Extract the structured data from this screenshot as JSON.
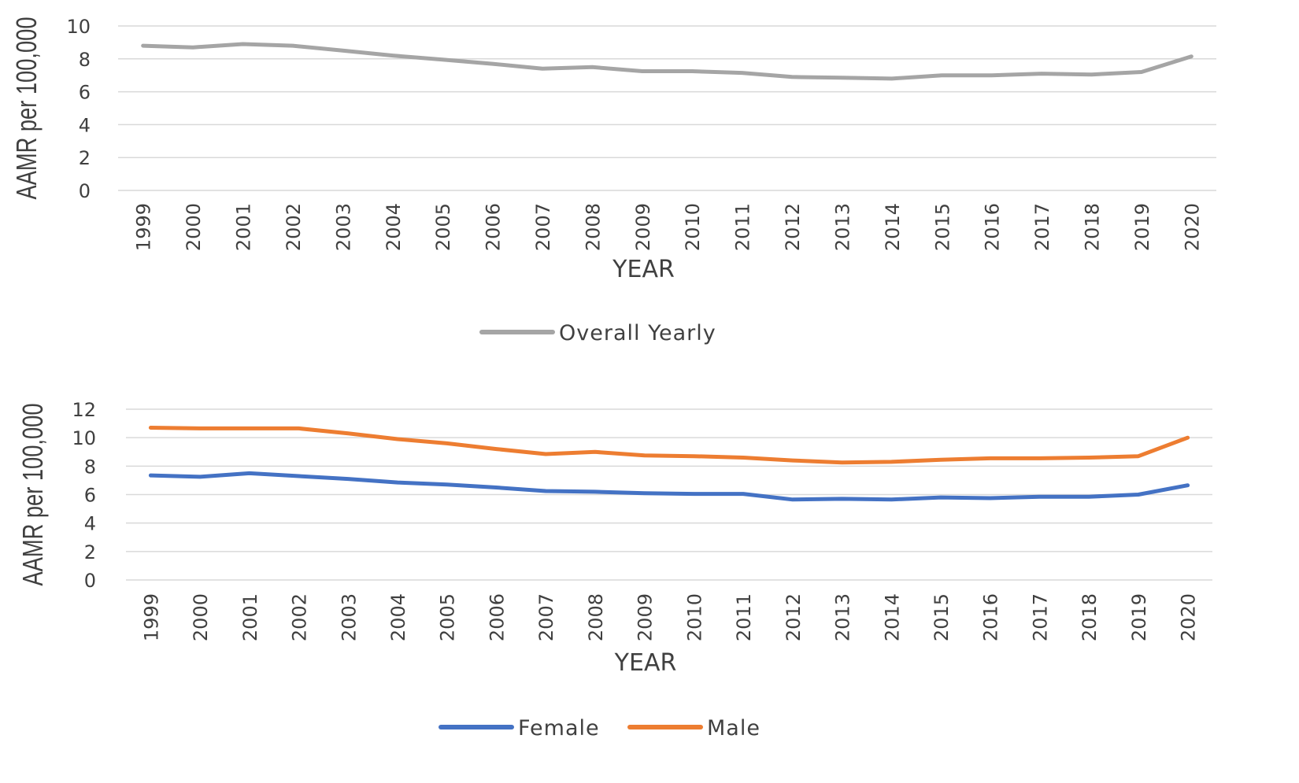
{
  "chart_data": [
    {
      "type": "line",
      "categories": [
        "1999",
        "2000",
        "2001",
        "2002",
        "2003",
        "2004",
        "2005",
        "2006",
        "2007",
        "2008",
        "2009",
        "2010",
        "2011",
        "2012",
        "2013",
        "2014",
        "2015",
        "2016",
        "2017",
        "2018",
        "2019",
        "2020"
      ],
      "series": [
        {
          "name": "Overall Yearly",
          "color": "#a5a5a5",
          "values": [
            8.8,
            8.7,
            8.9,
            8.8,
            8.5,
            8.2,
            7.95,
            7.7,
            7.4,
            7.5,
            7.25,
            7.25,
            7.15,
            6.9,
            6.85,
            6.8,
            7.0,
            7.0,
            7.1,
            7.05,
            7.2,
            8.15
          ]
        }
      ],
      "xlabel": "YEAR",
      "ylabel": "AAMR per 100,000",
      "ylim": [
        0,
        10
      ],
      "yticks": [
        "0",
        "2",
        "4",
        "6",
        "8",
        "10"
      ],
      "grid": true,
      "legend": "bottom"
    },
    {
      "type": "line",
      "categories": [
        "1999",
        "2000",
        "2001",
        "2002",
        "2003",
        "2004",
        "2005",
        "2006",
        "2007",
        "2008",
        "2009",
        "2010",
        "2011",
        "2012",
        "2013",
        "2014",
        "2015",
        "2016",
        "2017",
        "2018",
        "2019",
        "2020"
      ],
      "series": [
        {
          "name": "Female",
          "color": "#4472c4",
          "values": [
            7.35,
            7.25,
            7.5,
            7.3,
            7.1,
            6.85,
            6.7,
            6.5,
            6.25,
            6.2,
            6.1,
            6.05,
            6.05,
            5.65,
            5.7,
            5.65,
            5.8,
            5.75,
            5.85,
            5.85,
            6.0,
            6.65
          ]
        },
        {
          "name": "Male",
          "color": "#ed7d31",
          "values": [
            10.7,
            10.65,
            10.65,
            10.65,
            10.3,
            9.9,
            9.6,
            9.2,
            8.85,
            9.0,
            8.75,
            8.7,
            8.6,
            8.4,
            8.25,
            8.3,
            8.45,
            8.55,
            8.55,
            8.6,
            8.7,
            10.0
          ]
        }
      ],
      "xlabel": "YEAR",
      "ylabel": "AAMR per 100,000",
      "ylim": [
        0,
        12
      ],
      "yticks": [
        "0",
        "2",
        "4",
        "6",
        "8",
        "10",
        "12"
      ],
      "grid": true,
      "legend": "bottom"
    }
  ]
}
